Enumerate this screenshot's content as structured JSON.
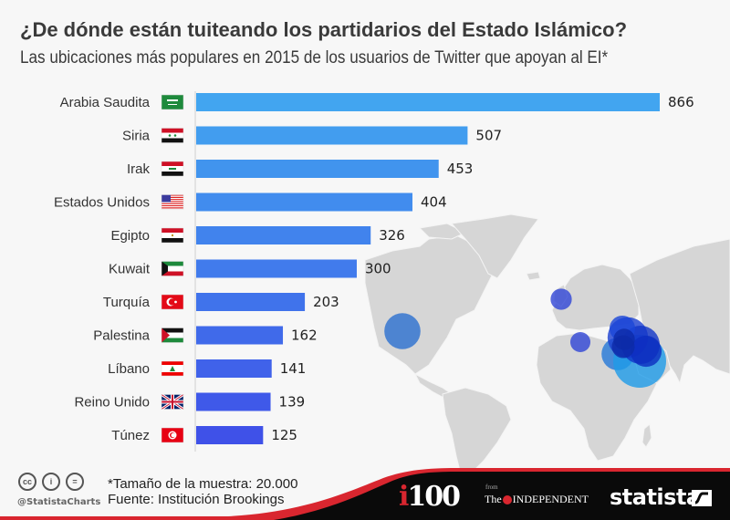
{
  "header": {
    "title": "¿De dónde están tuiteando los partidarios del Estado Islámico?",
    "subtitle": "Las ubicaciones más populares en 2015 de los usuarios de Twitter que apoyan al EI*"
  },
  "chart_data": {
    "type": "bar",
    "orientation": "horizontal",
    "title": "¿De dónde están tuiteando los partidarios del Estado Islámico?",
    "subtitle": "Las ubicaciones más populares en 2015 de los usuarios de Twitter que apoyan al EI*",
    "xlabel": "",
    "ylabel": "",
    "categories": [
      "Arabia Saudita",
      "Siria",
      "Irak",
      "Estados Unidos",
      "Egipto",
      "Kuwait",
      "Turquía",
      "Palestina",
      "Líbano",
      "Reino Unido",
      "Túnez"
    ],
    "values": [
      866,
      507,
      453,
      404,
      326,
      300,
      203,
      162,
      141,
      139,
      125
    ],
    "xlim": [
      0,
      866
    ],
    "grid": false,
    "data_labels": true,
    "flags": [
      "saudi-arabia-flag",
      "syria-flag",
      "iraq-flag",
      "usa-flag",
      "egypt-flag",
      "kuwait-flag",
      "turkey-flag",
      "palestine-flag",
      "lebanon-flag",
      "uk-flag",
      "tunisia-flag"
    ],
    "bar_color_start": "#42a5f0",
    "bar_color_end": "#3f51e8",
    "background_map": {
      "type": "bubble-map",
      "bubbles": [
        {
          "country": "Estados Unidos",
          "value": 404
        },
        {
          "country": "Reino Unido",
          "value": 139
        },
        {
          "country": "Túnez",
          "value": 125
        },
        {
          "country": "Egipto",
          "value": 326
        },
        {
          "country": "Arabia Saudita",
          "value": 866
        },
        {
          "country": "Siria",
          "value": 507
        },
        {
          "country": "Irak",
          "value": 453
        },
        {
          "country": "Turquía",
          "value": 203
        },
        {
          "country": "Kuwait",
          "value": 300
        },
        {
          "country": "Palestina",
          "value": 162
        },
        {
          "country": "Líbano",
          "value": 141
        }
      ]
    }
  },
  "footer": {
    "note": "*Tamaño de la muestra: 20.000",
    "source": "Fuente: Institución Brookings",
    "handle": "@StatistaCharts",
    "cc_icons": [
      "cc-icon",
      "attribution-icon",
      "no-derivatives-icon"
    ],
    "cc_labels": [
      "cc",
      "i",
      "="
    ],
    "logos": {
      "i100_prefix": "i",
      "i100_rest": "100",
      "from": "from",
      "independent": "INDEPENDENT",
      "the": "The",
      "statista": "statista"
    }
  },
  "colors": {
    "accent_red": "#d9262f",
    "footer_black": "#0a0a0a",
    "map_land": "#d6d6d6"
  }
}
